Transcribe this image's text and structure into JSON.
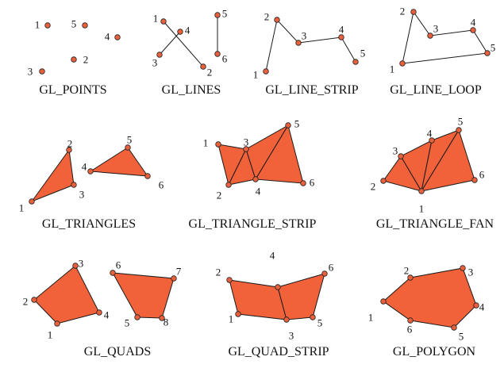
{
  "colors": {
    "fill": "#F2623A",
    "vertex": "#E8603C",
    "stroke": "#1a1a1a",
    "background": "#ffffff"
  },
  "panels": [
    {
      "caption": "GL_POINTS",
      "labels": [
        "1",
        "2",
        "3",
        "4",
        "5"
      ]
    },
    {
      "caption": "GL_LINES",
      "labels": [
        "1",
        "2",
        "3",
        "4",
        "5",
        "6"
      ]
    },
    {
      "caption": "GL_LINE_STRIP",
      "labels": [
        "1",
        "2",
        "3",
        "4",
        "5"
      ]
    },
    {
      "caption": "GL_LINE_LOOP",
      "labels": [
        "1",
        "2",
        "3",
        "4",
        "5"
      ]
    },
    {
      "caption": "GL_TRIANGLES",
      "labels": [
        "1",
        "2",
        "3",
        "4",
        "5",
        "6"
      ]
    },
    {
      "caption": "GL_TRIANGLE_STRIP",
      "labels": [
        "1",
        "2",
        "3",
        "4",
        "5",
        "6"
      ]
    },
    {
      "caption": "GL_TRIANGLE_FAN",
      "labels": [
        "1",
        "2",
        "3",
        "4",
        "5",
        "6"
      ]
    },
    {
      "caption": "GL_QUADS",
      "labels": [
        "1",
        "2",
        "3",
        "4",
        "5",
        "6",
        "7",
        "8"
      ]
    },
    {
      "caption": "GL_QUAD_STRIP",
      "labels": [
        "1",
        "2",
        "3",
        "4",
        "5",
        "6"
      ]
    },
    {
      "caption": "GL_POLYGON",
      "labels": [
        "1",
        "2",
        "3",
        "4",
        "5",
        "6"
      ]
    }
  ]
}
